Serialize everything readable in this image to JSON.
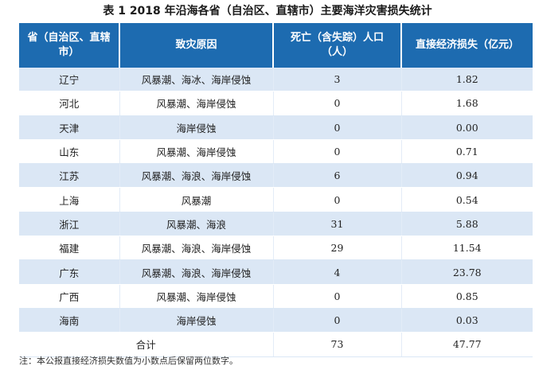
{
  "caption": "表 1  2018 年沿海各省（自治区、直辖市）主要海洋灾害损失统计",
  "header": {
    "col1": "省（自治区、直辖市）",
    "col2": "致灾原因",
    "col3": "死亡（含失踪）人口（人）",
    "col4": "直接经济损失（亿元）"
  },
  "rows": [
    {
      "province": "辽宁",
      "cause": "风暴潮、海冰、海岸侵蚀",
      "deaths": "3",
      "loss": "1.82"
    },
    {
      "province": "河北",
      "cause": "风暴潮、海岸侵蚀",
      "deaths": "0",
      "loss": "1.68"
    },
    {
      "province": "天津",
      "cause": "海岸侵蚀",
      "deaths": "0",
      "loss": "0.00"
    },
    {
      "province": "山东",
      "cause": "风暴潮、海岸侵蚀",
      "deaths": "0",
      "loss": "0.71"
    },
    {
      "province": "江苏",
      "cause": "风暴潮、海浪、海岸侵蚀",
      "deaths": "6",
      "loss": "0.94"
    },
    {
      "province": "上海",
      "cause": "风暴潮",
      "deaths": "0",
      "loss": "0.54"
    },
    {
      "province": "浙江",
      "cause": "风暴潮、海浪",
      "deaths": "31",
      "loss": "5.88"
    },
    {
      "province": "福建",
      "cause": "风暴潮、海浪、海岸侵蚀",
      "deaths": "29",
      "loss": "11.54"
    },
    {
      "province": "广东",
      "cause": "风暴潮、海浪、海岸侵蚀",
      "deaths": "4",
      "loss": "23.78"
    },
    {
      "province": "广西",
      "cause": "风暴潮、海岸侵蚀",
      "deaths": "0",
      "loss": "0.85"
    },
    {
      "province": "海南",
      "cause": "海岸侵蚀",
      "deaths": "0",
      "loss": "0.03"
    }
  ],
  "total": {
    "label": "合计",
    "deaths": "73",
    "loss": "47.77"
  },
  "footnote": "注：本公报直接经济损失数值为小数点后保留两位数字。"
}
